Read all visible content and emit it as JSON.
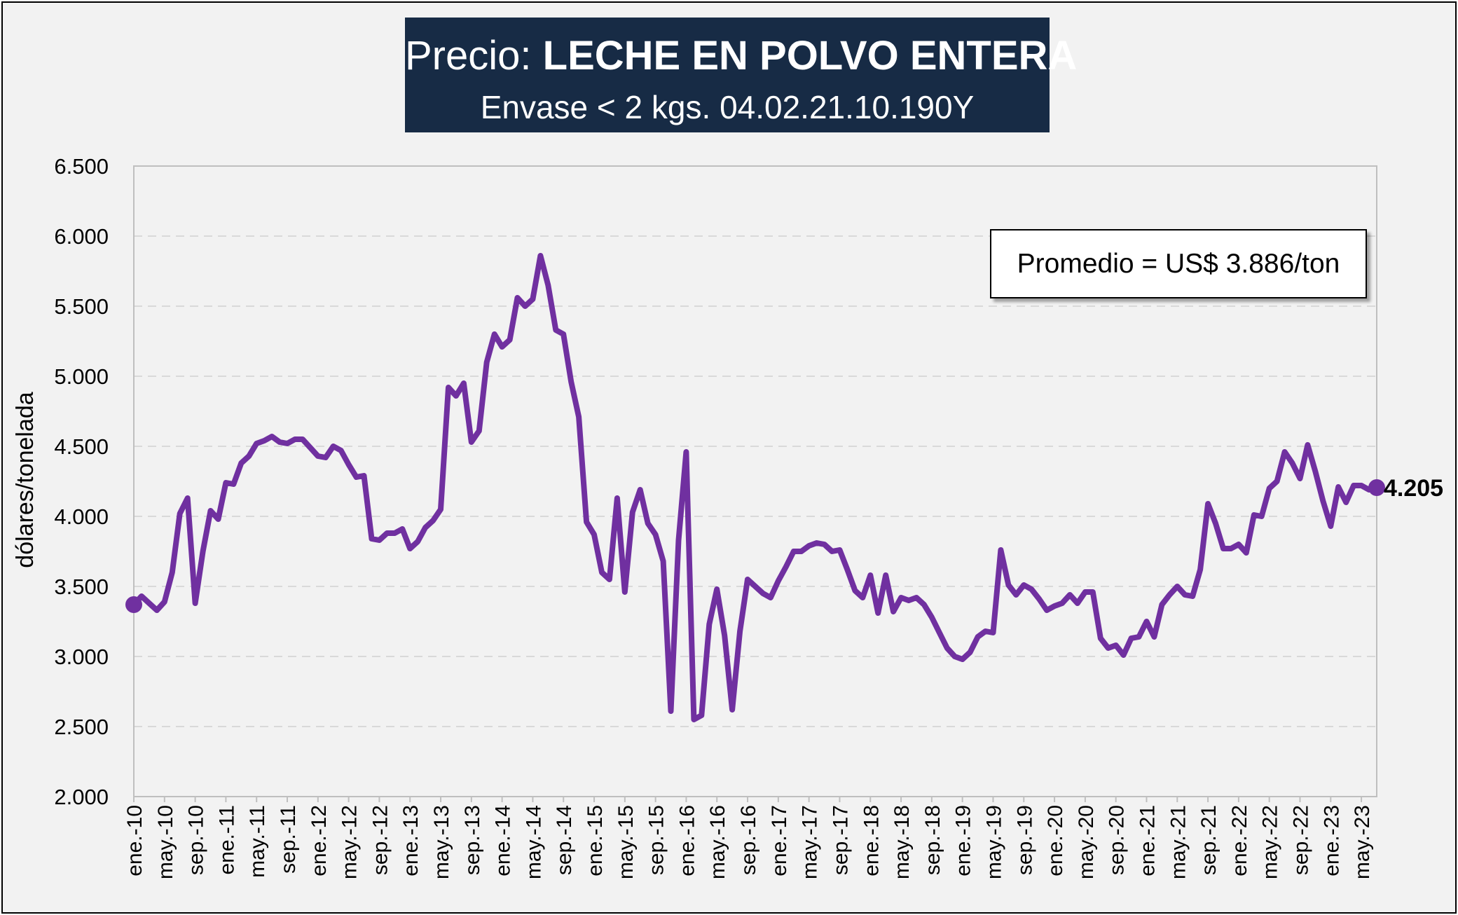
{
  "title": {
    "prefix": "Precio:",
    "product": "LECHE EN POLVO ENTERA",
    "subtitle": "Envase < 2 kgs. 04.02.21.10.190Y"
  },
  "average_label": "Promedio = US$ 3.886/ton",
  "last_value_label": "4.205",
  "colors": {
    "line": "#7030a0",
    "title_bg": "#172b45",
    "background": "#f2f2f2",
    "grid": "#d9d9d9"
  },
  "chart_data": {
    "type": "line",
    "title": "Precio: LECHE EN POLVO ENTERA",
    "subtitle": "Envase < 2 kgs. 04.02.21.10.190Y",
    "xlabel": "",
    "ylabel": "dólares/tonelada",
    "ylim": [
      2000,
      6500
    ],
    "y_ticks": [
      2000,
      2500,
      3000,
      3500,
      4000,
      4500,
      5000,
      5500,
      6000,
      6500
    ],
    "y_tick_labels": [
      "2.000",
      "2.500",
      "3.000",
      "3.500",
      "4.000",
      "4.500",
      "5.000",
      "5.500",
      "6.000",
      "6.500"
    ],
    "grid": "horizontal dashed",
    "x_tick_labels": [
      "ene.-10",
      "may.-10",
      "sep.-10",
      "ene.-11",
      "may.-11",
      "sep.-11",
      "ene.-12",
      "may.-12",
      "sep.-12",
      "ene.-13",
      "may.-13",
      "sep.-13",
      "ene.-14",
      "may.-14",
      "sep.-14",
      "ene.-15",
      "may.-15",
      "sep.-15",
      "ene.-16",
      "may.-16",
      "sep.-16",
      "ene.-17",
      "may.-17",
      "sep.-17",
      "ene.-18",
      "may.-18",
      "sep.-18",
      "ene.-19",
      "may.-19",
      "sep.-19",
      "ene.-20",
      "may.-20",
      "sep.-20",
      "ene.-21",
      "may.-21",
      "sep.-21",
      "ene.-22",
      "may.-22",
      "sep.-22",
      "ene.-23",
      "may.-23"
    ],
    "start": "ene.-10",
    "frequency": "monthly",
    "series": [
      {
        "name": "",
        "values": [
          3370,
          3430,
          3380,
          3330,
          3390,
          3600,
          4020,
          4130,
          3380,
          3750,
          4040,
          3980,
          4240,
          4230,
          4380,
          4430,
          4520,
          4540,
          4570,
          4530,
          4520,
          4550,
          4550,
          4490,
          4430,
          4420,
          4500,
          4470,
          4370,
          4280,
          4290,
          3840,
          3830,
          3880,
          3880,
          3910,
          3770,
          3820,
          3920,
          3970,
          4050,
          4920,
          4860,
          4950,
          4530,
          4610,
          5100,
          5300,
          5210,
          5260,
          5560,
          5500,
          5550,
          5860,
          5650,
          5330,
          5300,
          4960,
          4710,
          3960,
          3870,
          3600,
          3550,
          4130,
          3460,
          4030,
          4190,
          3950,
          3870,
          3680,
          2610,
          3830,
          4460,
          2550,
          2580,
          3230,
          3480,
          3150,
          2620,
          3180,
          3550,
          3500,
          3450,
          3420,
          3540,
          3640,
          3750,
          3750,
          3790,
          3810,
          3800,
          3750,
          3760,
          3620,
          3470,
          3420,
          3580,
          3310,
          3580,
          3320,
          3420,
          3400,
          3420,
          3370,
          3280,
          3170,
          3060,
          3000,
          2980,
          3030,
          3140,
          3180,
          3170,
          3760,
          3510,
          3440,
          3510,
          3480,
          3410,
          3330,
          3360,
          3380,
          3440,
          3380,
          3460,
          3460,
          3130,
          3060,
          3080,
          3010,
          3130,
          3140,
          3250,
          3140,
          3370,
          3440,
          3500,
          3440,
          3430,
          3620,
          4090,
          3950,
          3770,
          3770,
          3800,
          3740,
          4010,
          4000,
          4200,
          4250,
          4460,
          4380,
          4270,
          4510,
          4320,
          4110,
          3930,
          4210,
          4100,
          4220,
          4220,
          4190,
          4205
        ]
      }
    ],
    "last_value": 4205,
    "annotation": "Promedio = US$ 3.886/ton",
    "average": 3886
  }
}
